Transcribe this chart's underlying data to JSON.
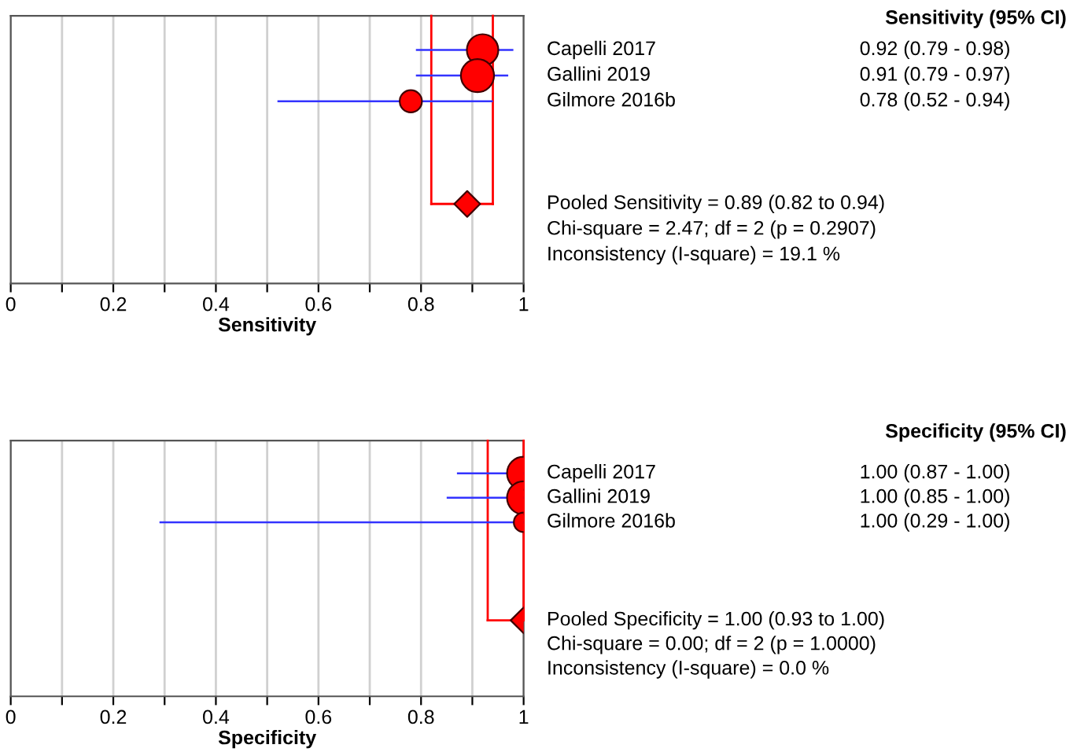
{
  "chart_data": [
    {
      "type": "bubble",
      "orientation": "horizontal",
      "xlabel": "Sensitivity",
      "categories": [
        "Capelli 2017",
        "Gallini 2019",
        "Gilmore 2016b",
        null,
        null,
        null,
        null
      ],
      "xlim": [
        0,
        1
      ],
      "xticks": [
        0,
        {
          "value": 0.1,
          "label": null
        },
        0.2,
        {
          "value": 0.3,
          "label": null
        },
        0.4,
        {
          "value": 0.5,
          "label": null
        },
        0.6,
        {
          "value": 0.7,
          "label": null
        },
        0.8,
        {
          "value": 0.9,
          "label": null
        },
        1
      ],
      "grid": "x",
      "legend": false,
      "series": [
        {
          "type": "bubble",
          "color": "#ff0000",
          "values": [
            0.92,
            0.91,
            0.78,
            null,
            null,
            null,
            null
          ],
          "sizes": [
            0.9,
            1,
            0.45,
            null,
            null,
            null,
            null
          ],
          "errors": [
            [
              0.79,
              0.98
            ],
            [
              0.79,
              0.97
            ],
            [
              0.52,
              0.94
            ],
            null,
            null,
            null,
            null
          ],
          "value_labels": [
            "0.92 (0.79 - 0.98)",
            "0.91 (0.79 - 0.97)",
            "0.78 (0.52 - 0.94)",
            null,
            null,
            null,
            null
          ]
        },
        {
          "type": "scatter",
          "marker": "diamond",
          "color": "#ff0000",
          "values": [
            null,
            null,
            null,
            null,
            null,
            null,
            0.89
          ]
        }
      ],
      "ref_lines": [
        {
          "axis": "x",
          "value": 0.82,
          "color": "#ff0000"
        },
        {
          "axis": "x",
          "value": 0.94,
          "color": "#ff0000"
        }
      ],
      "annotations": [
        "Sensitivity (95% CI)",
        "Pooled Sensitivity = 0.89 (0.82 to 0.94)",
        "Chi-square = 2.47; df = 2 (p = 0.2907)",
        "Inconsistency (I-square) = 19.1 %"
      ]
    },
    {
      "type": "bubble",
      "orientation": "horizontal",
      "xlabel": "Specificity",
      "categories": [
        "Capelli 2017",
        "Gallini 2019",
        "Gilmore 2016b",
        null,
        null,
        null,
        null
      ],
      "xlim": [
        0,
        1
      ],
      "xticks": [
        0,
        {
          "value": 0.1,
          "label": null
        },
        0.2,
        {
          "value": 0.3,
          "label": null
        },
        0.4,
        {
          "value": 0.5,
          "label": null
        },
        0.6,
        {
          "value": 0.7,
          "label": null
        },
        0.8,
        {
          "value": 0.9,
          "label": null
        },
        1
      ],
      "grid": "x",
      "legend": false,
      "series": [
        {
          "type": "bubble",
          "color": "#ff0000",
          "values": [
            1.0,
            1.0,
            1.0,
            null,
            null,
            null,
            null
          ],
          "sizes": [
            1,
            1,
            0.35,
            null,
            null,
            null,
            null
          ],
          "errors": [
            [
              0.87,
              1.0
            ],
            [
              0.85,
              1.0
            ],
            [
              0.29,
              1.0
            ],
            null,
            null,
            null,
            null
          ],
          "value_labels": [
            "1.00 (0.87 - 1.00)",
            "1.00 (0.85 - 1.00)",
            "1.00 (0.29 - 1.00)",
            null,
            null,
            null,
            null
          ]
        },
        {
          "type": "scatter",
          "marker": "diamond",
          "color": "#ff0000",
          "values": [
            null,
            null,
            null,
            null,
            null,
            null,
            1.0
          ]
        }
      ],
      "ref_lines": [
        {
          "axis": "x",
          "value": 0.93,
          "color": "#ff0000"
        },
        {
          "axis": "x",
          "value": 1.0,
          "color": "#ff0000"
        }
      ],
      "annotations": [
        "Specificity (95% CI)",
        "Pooled Specificity = 1.00 (0.93 to 1.00)",
        "Chi-square = 0.00; df = 2 (p = 1.0000)",
        "Inconsistency (I-square) = 0.0 %"
      ]
    }
  ]
}
